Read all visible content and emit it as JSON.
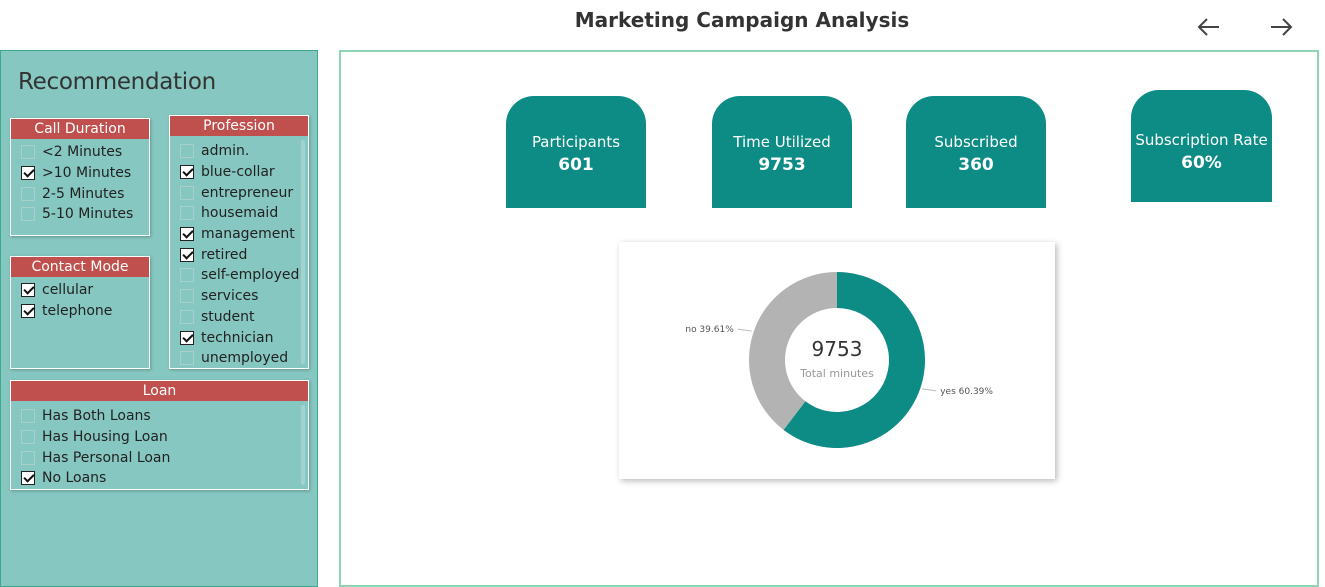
{
  "header": {
    "title": "Marketing Campaign Analysis"
  },
  "nav": {
    "back_icon": "arrow-left-icon",
    "forward_icon": "arrow-right-icon"
  },
  "sidebar": {
    "title": "Recommendation",
    "call_duration": {
      "header": "Call Duration",
      "items": [
        {
          "label": "<2 Minutes",
          "checked": false
        },
        {
          "label": ">10 Minutes",
          "checked": true
        },
        {
          "label": "2-5 Minutes",
          "checked": false
        },
        {
          "label": "5-10 Minutes",
          "checked": false
        }
      ]
    },
    "contact_mode": {
      "header": "Contact Mode",
      "items": [
        {
          "label": "cellular",
          "checked": true
        },
        {
          "label": "telephone",
          "checked": true
        }
      ]
    },
    "profession": {
      "header": "Profession",
      "items": [
        {
          "label": "admin.",
          "checked": false
        },
        {
          "label": "blue-collar",
          "checked": true
        },
        {
          "label": "entrepreneur",
          "checked": false
        },
        {
          "label": "housemaid",
          "checked": false
        },
        {
          "label": "management",
          "checked": true
        },
        {
          "label": "retired",
          "checked": true
        },
        {
          "label": "self-employed",
          "checked": false
        },
        {
          "label": "services",
          "checked": false
        },
        {
          "label": "student",
          "checked": false
        },
        {
          "label": "technician",
          "checked": true
        },
        {
          "label": "unemployed",
          "checked": false
        }
      ]
    },
    "loan": {
      "header": "Loan",
      "items": [
        {
          "label": "Has Both Loans",
          "checked": false
        },
        {
          "label": "Has Housing Loan",
          "checked": false
        },
        {
          "label": "Has Personal Loan",
          "checked": false
        },
        {
          "label": "No Loans",
          "checked": true
        }
      ]
    }
  },
  "kpis": {
    "participants": {
      "label": "Participants",
      "value": "601"
    },
    "time_utilized": {
      "label": "Time Utilized",
      "value": "9753"
    },
    "subscribed": {
      "label": "Subscribed",
      "value": "360"
    },
    "subscription_rate": {
      "label": "Subscription Rate",
      "value": "60%"
    }
  },
  "colors": {
    "teal": "#0c8c84",
    "grey": "#b3b3b3",
    "slicer_header": "#c0504d",
    "sidebar_bg": "#86c7c1"
  },
  "chart_data": {
    "type": "pie",
    "variant": "donut",
    "center_value": "9753",
    "center_label": "Total minutes",
    "slices": [
      {
        "name": "yes",
        "value": 60.39,
        "label": "yes 60.39%",
        "color": "#0c8c84"
      },
      {
        "name": "no",
        "value": 39.61,
        "label": "no 39.61%",
        "color": "#b3b3b3"
      }
    ]
  }
}
